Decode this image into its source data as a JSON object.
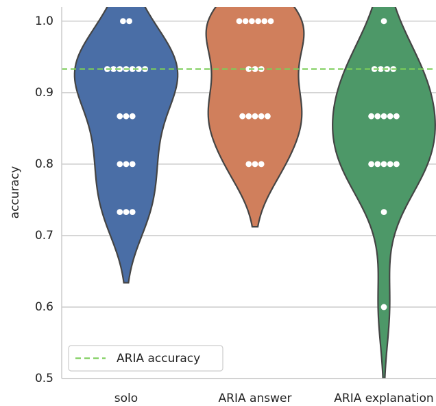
{
  "chart_data": {
    "type": "violin",
    "ylabel": "accuracy",
    "categories": [
      "solo",
      "ARIA answer",
      "ARIA explanation"
    ],
    "series": [
      {
        "name": "solo",
        "color": "#4a6ea6",
        "values": [
          1,
          1,
          0.933,
          0.933,
          0.933,
          0.933,
          0.933,
          0.933,
          0.933,
          0.867,
          0.867,
          0.867,
          0.8,
          0.8,
          0.8,
          0.733,
          0.733,
          0.733
        ]
      },
      {
        "name": "ARIA answer",
        "color": "#d07f5c",
        "values": [
          1,
          1,
          1,
          1,
          1,
          1,
          0.933,
          0.933,
          0.933,
          0.867,
          0.867,
          0.867,
          0.867,
          0.867,
          0.8,
          0.8,
          0.8
        ]
      },
      {
        "name": "ARIA explanation",
        "color": "#4d9868",
        "values": [
          1,
          0.933,
          0.933,
          0.933,
          0.933,
          0.867,
          0.867,
          0.867,
          0.867,
          0.867,
          0.8,
          0.8,
          0.8,
          0.8,
          0.8,
          0.733,
          0.6
        ]
      }
    ],
    "hline": {
      "value": 0.933,
      "label": "ARIA accuracy",
      "color": "#7ccd5a"
    },
    "ylim": [
      0.5,
      1.02
    ],
    "yticks": [
      0.5,
      0.6,
      0.7,
      0.8,
      0.9,
      {
        "value": 1,
        "label": "1.0"
      }
    ],
    "grid": true,
    "legend": "lower left"
  }
}
